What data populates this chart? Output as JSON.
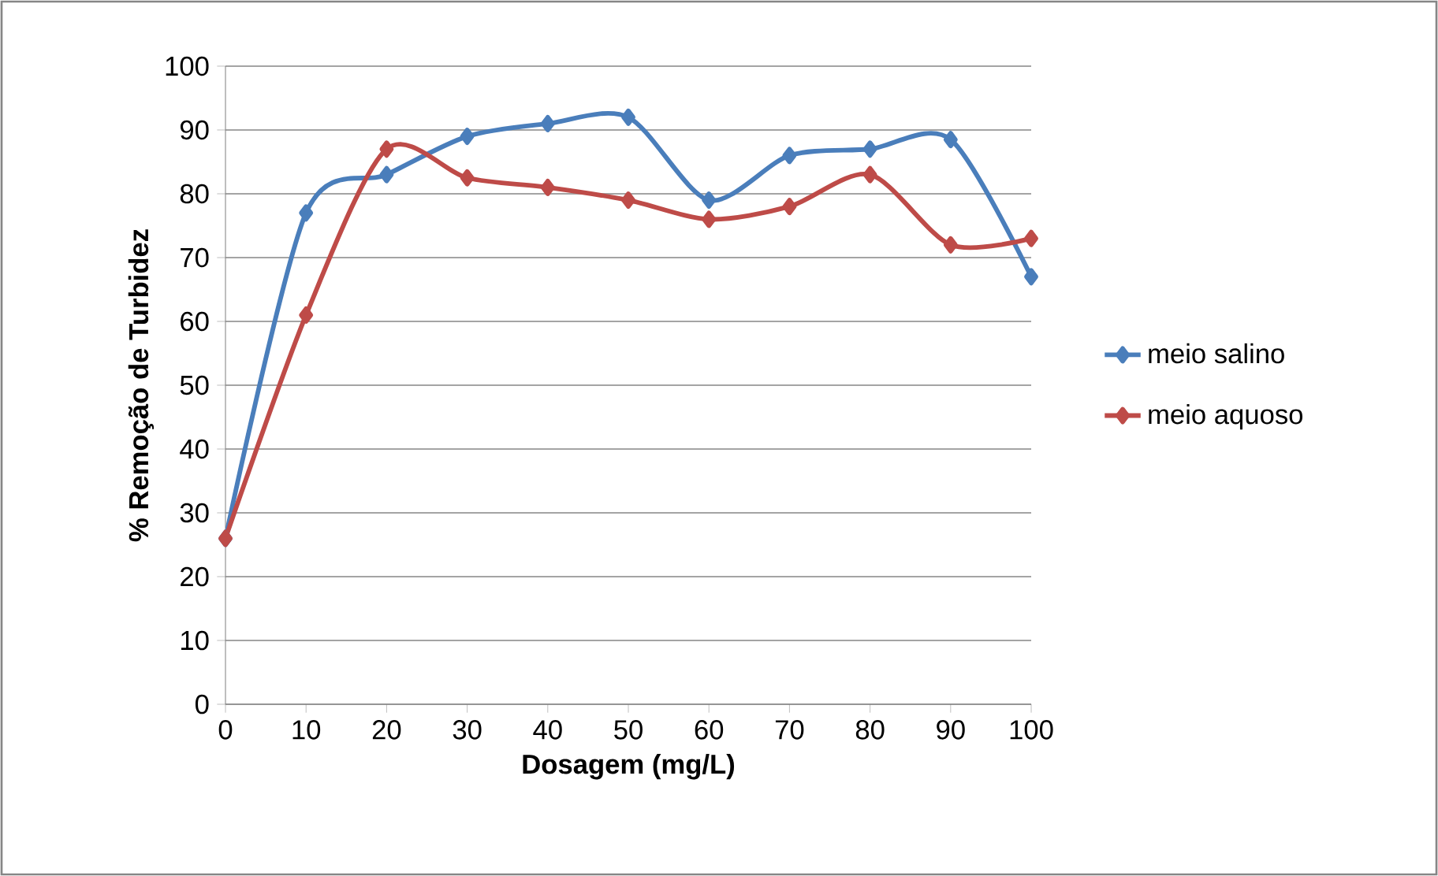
{
  "chart_data": {
    "type": "line",
    "xlabel": "Dosagem (mg/L)",
    "ylabel": "% Remoção de Turbidez",
    "x": [
      0,
      10,
      20,
      30,
      40,
      50,
      60,
      70,
      80,
      90,
      100
    ],
    "series": [
      {
        "name": "meio salino",
        "color": "#4a7ebb",
        "values": [
          26,
          77,
          83,
          89,
          91,
          92,
          79,
          86,
          87,
          88.5,
          67
        ]
      },
      {
        "name": "meio aquoso",
        "color": "#be4b48",
        "values": [
          26,
          61,
          87,
          82.5,
          81,
          79,
          76,
          78,
          83,
          72,
          73
        ]
      }
    ],
    "xlim": [
      0,
      100
    ],
    "xticks": [
      0,
      10,
      20,
      30,
      40,
      50,
      60,
      70,
      80,
      90,
      100
    ],
    "ylim": [
      0,
      100
    ],
    "yticks": [
      0,
      10,
      20,
      30,
      40,
      50,
      60,
      70,
      80,
      90,
      100
    ],
    "grid": "y",
    "legend": "right",
    "marker": "diamond",
    "line_style": "solid"
  }
}
